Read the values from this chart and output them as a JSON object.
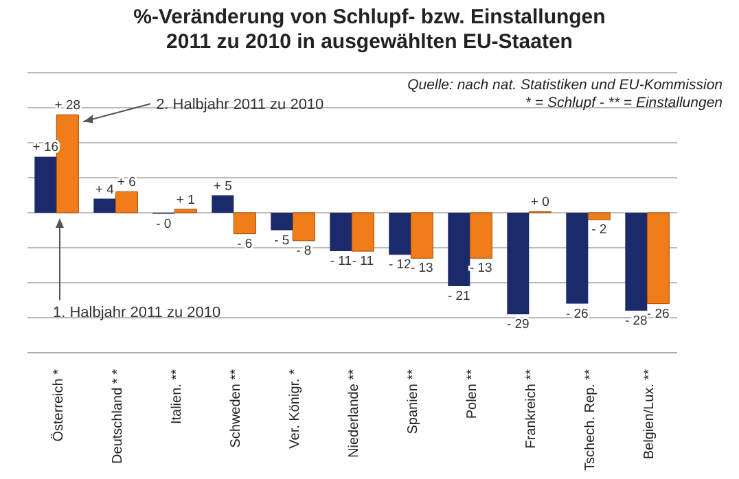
{
  "chart_data": {
    "type": "bar",
    "title": "%-Veränderung von Schlupf- bzw. Einstallungen\n2011 zu 2010 in ausgewählten EU-Staaten",
    "annotations": [
      "Quelle: nach nat. Statistiken und EU-Kommission",
      "* =  Schlupf - ** = Einstallungen"
    ],
    "categories": [
      "Österreich *",
      "Deutschland * *",
      "Italien. **",
      "Schweden **",
      "Ver. Königr. *",
      "Niederlande **",
      "Spanien **",
      "Polen **",
      "Frankreich **",
      "Tschech. Rep. **",
      "Belgien/Lux. **"
    ],
    "series": [
      {
        "name": "1. Halbjahr 2011 zu 2010",
        "color": "#1b2a6b",
        "values": [
          16,
          4,
          -0.3,
          5,
          -5,
          -11,
          -12,
          -21,
          -29,
          -26,
          -28
        ],
        "value_labels": [
          "+ 16",
          "+ 4",
          "- 0",
          "+ 5",
          "- 5",
          "- 11",
          "- 12",
          "- 21",
          "- 29",
          "- 26",
          "- 28"
        ]
      },
      {
        "name": "2. Halbjahr 2011 zu 2010",
        "color": "#f07c1a",
        "values": [
          28,
          6,
          1,
          -6,
          -8,
          -11,
          -13,
          -13,
          0.3,
          -2,
          -26
        ],
        "value_labels": [
          "+ 28",
          "+ 6",
          "+ 1",
          "- 6",
          "- 8",
          "- 11",
          "- 13",
          "- 13",
          "+ 0",
          "- 2",
          "- 26"
        ]
      }
    ],
    "ylim": [
      -40,
      40
    ],
    "yticks": [
      {
        "value": -40,
        "label": null
      },
      {
        "value": -30,
        "label": null
      },
      {
        "value": -20,
        "label": null
      },
      {
        "value": -10,
        "label": null
      },
      {
        "value": 0,
        "label": null
      },
      {
        "value": 10,
        "label": null
      },
      {
        "value": 20,
        "label": null
      },
      {
        "value": 30,
        "label": null
      },
      {
        "value": 40,
        "label": null
      }
    ],
    "tick_labels": "x",
    "grid": "y"
  }
}
